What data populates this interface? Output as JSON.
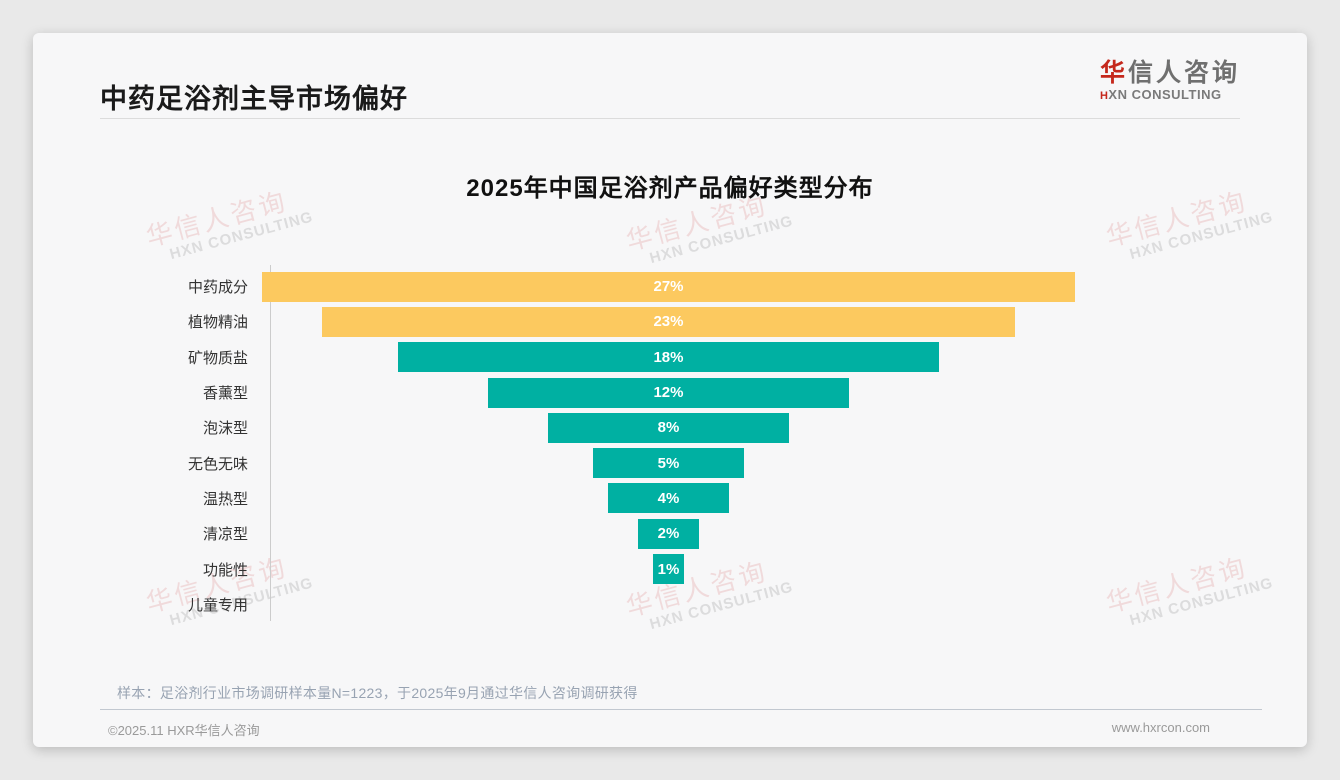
{
  "header": {
    "title": "中药足浴剂主导市场偏好"
  },
  "logo": {
    "cn_first": "华",
    "cn_rest": "信人咨询",
    "en_first": "H",
    "en_rest": "XN CONSULTING"
  },
  "watermark": {
    "line1": "华信人咨询",
    "line2": "HXN CONSULTING"
  },
  "note": "样本：足浴剂行业市场调研样本量N=1223，于2025年9月通过华信人咨询调研获得",
  "footer": {
    "copyright": "©2025.11 HXR华信人咨询",
    "website": "www.hxrcon.com"
  },
  "chart_data": {
    "type": "bar",
    "variant": "centered-funnel",
    "title": "2025年中国足浴剂产品偏好类型分布",
    "categories": [
      "中药成分",
      "植物精油",
      "矿物质盐",
      "香薰型",
      "泡沫型",
      "无色无味",
      "温热型",
      "清凉型",
      "功能性",
      "儿童专用"
    ],
    "values": [
      27,
      23,
      18,
      12,
      8,
      5,
      4,
      2,
      1,
      0
    ],
    "value_labels": [
      "27%",
      "23%",
      "18%",
      "12%",
      "8%",
      "5%",
      "4%",
      "2%",
      "1%",
      ""
    ],
    "xlabel": "",
    "ylabel": "",
    "xlim": [
      0,
      27
    ],
    "grid": false,
    "legend": "none",
    "colors": {
      "highlight": "#fcc95f",
      "default": "#00b0a2",
      "bar_text": "#ffffff"
    },
    "highlight_count": 2
  }
}
